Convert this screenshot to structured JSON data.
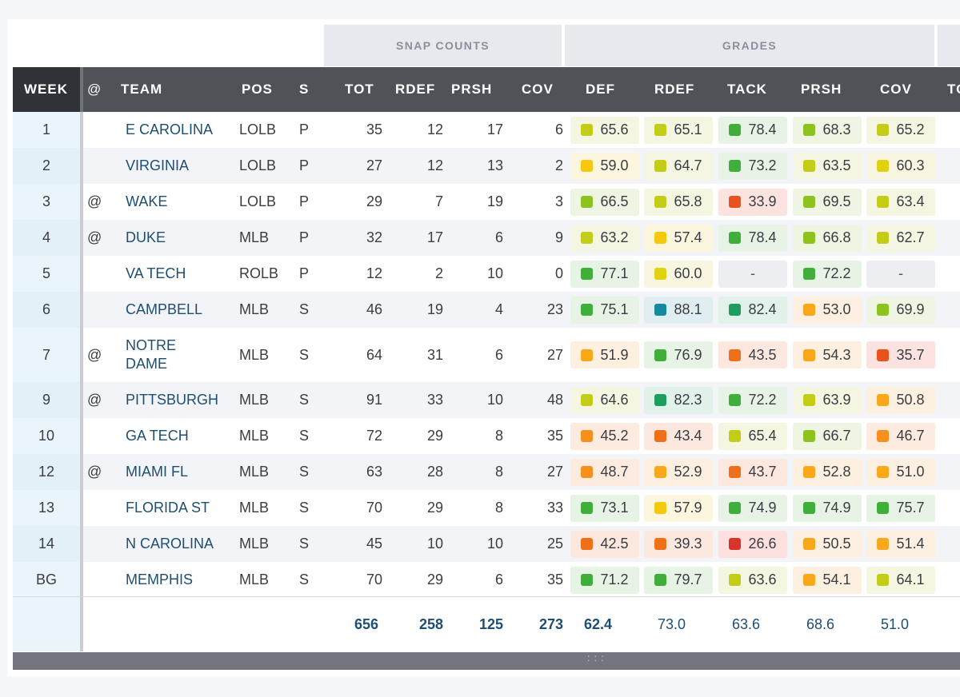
{
  "groups": {
    "snap_counts": "SNAP COUNTS",
    "grades": "GRADES"
  },
  "columns": {
    "week": "WEEK",
    "at": "@",
    "team": "TEAM",
    "pos": "POS",
    "s": "S",
    "tot": "TOT",
    "rdef": "RDEF",
    "prsh": "PRSH",
    "cov": "COV",
    "g_def": "DEF",
    "g_rdef": "RDEF",
    "g_tack": "TACK",
    "g_prsh": "PRSH",
    "g_cov": "COV",
    "partial": "TO"
  },
  "rows": [
    {
      "week": "1",
      "at": "",
      "team": "E CAROLINA",
      "pos": "LOLB",
      "s": "P",
      "tot": "35",
      "rdef": "12",
      "prsh": "17",
      "cov": "6",
      "grades": [
        "65.6",
        "65.1",
        "78.4",
        "68.3",
        "65.2"
      ]
    },
    {
      "week": "2",
      "at": "",
      "team": "VIRGINIA",
      "pos": "LOLB",
      "s": "P",
      "tot": "27",
      "rdef": "12",
      "prsh": "13",
      "cov": "2",
      "grades": [
        "59.0",
        "64.7",
        "73.2",
        "63.5",
        "60.3"
      ]
    },
    {
      "week": "3",
      "at": "@",
      "team": "WAKE",
      "pos": "LOLB",
      "s": "P",
      "tot": "29",
      "rdef": "7",
      "prsh": "19",
      "cov": "3",
      "grades": [
        "66.5",
        "65.8",
        "33.9",
        "69.5",
        "63.4"
      ]
    },
    {
      "week": "4",
      "at": "@",
      "team": "DUKE",
      "pos": "MLB",
      "s": "P",
      "tot": "32",
      "rdef": "17",
      "prsh": "6",
      "cov": "9",
      "grades": [
        "63.2",
        "57.4",
        "78.4",
        "66.8",
        "62.7"
      ]
    },
    {
      "week": "5",
      "at": "",
      "team": "VA TECH",
      "pos": "ROLB",
      "s": "P",
      "tot": "12",
      "rdef": "2",
      "prsh": "10",
      "cov": "0",
      "grades": [
        "77.1",
        "60.0",
        "-",
        "72.2",
        "-"
      ]
    },
    {
      "week": "6",
      "at": "",
      "team": "CAMPBELL",
      "pos": "MLB",
      "s": "S",
      "tot": "46",
      "rdef": "19",
      "prsh": "4",
      "cov": "23",
      "grades": [
        "75.1",
        "88.1",
        "82.4",
        "53.0",
        "69.9"
      ]
    },
    {
      "week": "7",
      "at": "@",
      "team": "NOTRE DAME",
      "pos": "MLB",
      "s": "S",
      "tot": "64",
      "rdef": "31",
      "prsh": "6",
      "cov": "27",
      "grades": [
        "51.9",
        "76.9",
        "43.5",
        "54.3",
        "35.7"
      ]
    },
    {
      "week": "9",
      "at": "@",
      "team": "PITTSBURGH",
      "pos": "MLB",
      "s": "S",
      "tot": "91",
      "rdef": "33",
      "prsh": "10",
      "cov": "48",
      "grades": [
        "64.6",
        "82.3",
        "72.2",
        "63.9",
        "50.8"
      ]
    },
    {
      "week": "10",
      "at": "",
      "team": "GA TECH",
      "pos": "MLB",
      "s": "S",
      "tot": "72",
      "rdef": "29",
      "prsh": "8",
      "cov": "35",
      "grades": [
        "45.2",
        "43.4",
        "65.4",
        "66.7",
        "46.7"
      ]
    },
    {
      "week": "12",
      "at": "@",
      "team": "MIAMI FL",
      "pos": "MLB",
      "s": "S",
      "tot": "63",
      "rdef": "28",
      "prsh": "8",
      "cov": "27",
      "grades": [
        "48.7",
        "52.9",
        "43.7",
        "52.8",
        "51.0"
      ]
    },
    {
      "week": "13",
      "at": "",
      "team": "FLORIDA ST",
      "pos": "MLB",
      "s": "S",
      "tot": "70",
      "rdef": "29",
      "prsh": "8",
      "cov": "33",
      "grades": [
        "73.1",
        "57.9",
        "74.9",
        "74.9",
        "75.7"
      ]
    },
    {
      "week": "14",
      "at": "",
      "team": "N CAROLINA",
      "pos": "MLB",
      "s": "S",
      "tot": "45",
      "rdef": "10",
      "prsh": "10",
      "cov": "25",
      "grades": [
        "42.5",
        "39.3",
        "26.6",
        "50.5",
        "51.4"
      ]
    },
    {
      "week": "BG",
      "at": "",
      "team": "MEMPHIS",
      "pos": "MLB",
      "s": "S",
      "tot": "70",
      "rdef": "29",
      "prsh": "6",
      "cov": "35",
      "grades": [
        "71.2",
        "79.7",
        "63.6",
        "54.1",
        "64.1"
      ]
    }
  ],
  "totals": {
    "tot": "656",
    "rdef": "258",
    "prsh": "125",
    "cov": "273",
    "grades": [
      "62.4",
      "73.0",
      "63.6",
      "68.6",
      "51.0"
    ]
  },
  "grade_scale": [
    {
      "min": 85,
      "dot": "#138a9e",
      "bg": "#e0eef2"
    },
    {
      "min": 80,
      "dot": "#1c9e5f",
      "bg": "#e2f1ea"
    },
    {
      "min": 70,
      "dot": "#3fae3a",
      "bg": "#e6f3e5"
    },
    {
      "min": 66,
      "dot": "#8ec21f",
      "bg": "#eef5e2"
    },
    {
      "min": 62,
      "dot": "#c3cc17",
      "bg": "#f4f6e1"
    },
    {
      "min": 60,
      "dot": "#e2d10e",
      "bg": "#f8f6e0"
    },
    {
      "min": 57,
      "dot": "#f6c90e",
      "bg": "#fdf6df"
    },
    {
      "min": 50,
      "dot": "#f9a81b",
      "bg": "#fdf0e0"
    },
    {
      "min": 45,
      "dot": "#f58f1d",
      "bg": "#fdebe0"
    },
    {
      "min": 36,
      "dot": "#f0701a",
      "bg": "#fde8e0"
    },
    {
      "min": 30,
      "dot": "#e8521c",
      "bg": "#fce3df"
    },
    {
      "min": 0,
      "dot": "#d9342b",
      "bg": "#fbe0de"
    }
  ]
}
